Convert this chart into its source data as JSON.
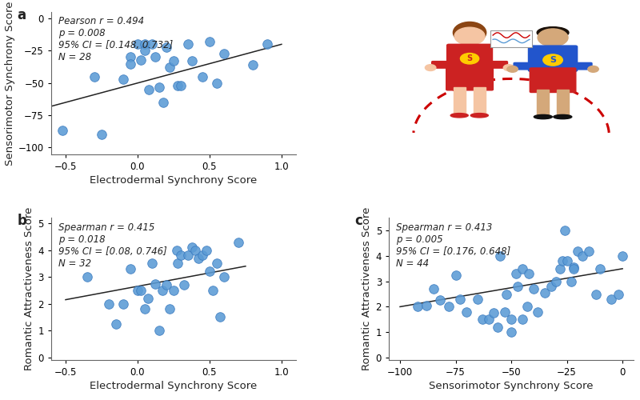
{
  "panel_a": {
    "label": "a",
    "stat_text": "Pearson r = 0.494\np = 0.008\n95% CI = [0.148, 0.732]\nN = 28",
    "xlabel": "Electrodermal Synchrony Score",
    "ylabel": "Sensorimotor Synchrony Score",
    "xlim": [
      -0.6,
      1.1
    ],
    "ylim": [
      -105,
      5
    ],
    "xticks": [
      -0.5,
      0.0,
      0.5,
      1.0
    ],
    "yticks": [
      0,
      -25,
      -50,
      -75,
      -100
    ],
    "x": [
      -0.52,
      -0.3,
      -0.25,
      -0.1,
      -0.05,
      -0.05,
      0.0,
      0.02,
      0.05,
      0.05,
      0.08,
      0.1,
      0.12,
      0.15,
      0.18,
      0.2,
      0.22,
      0.25,
      0.28,
      0.3,
      0.35,
      0.38,
      0.45,
      0.5,
      0.55,
      0.6,
      0.8,
      0.9
    ],
    "y": [
      -87,
      -45,
      -90,
      -47,
      -30,
      -35,
      -20,
      -32,
      -20,
      -25,
      -55,
      -20,
      -30,
      -53,
      -65,
      -22,
      -38,
      -33,
      -52,
      -52,
      -20,
      -33,
      -45,
      -18,
      -50,
      -27,
      -36,
      -20
    ],
    "line_x": [
      -0.6,
      1.0
    ],
    "line_y": [
      -68,
      -20
    ],
    "dot_color": "#5b9bd5",
    "dot_size": 70,
    "dot_edgecolor": "#3a7abf",
    "line_color": "#222222"
  },
  "panel_b": {
    "label": "b",
    "stat_text": "Spearman r = 0.415\np = 0.018\n95% CI = [0.08, 0.746]\nN = 32",
    "xlabel": "Electrodermal Synchrony Score",
    "ylabel": "Romantic Attractiveness Score",
    "xlim": [
      -0.6,
      1.1
    ],
    "ylim": [
      -0.1,
      5.2
    ],
    "xticks": [
      -0.5,
      0.0,
      0.5,
      1.0
    ],
    "yticks": [
      0,
      1,
      2,
      3,
      4,
      5
    ],
    "x": [
      -0.35,
      -0.2,
      -0.15,
      -0.1,
      -0.05,
      0.0,
      0.02,
      0.05,
      0.07,
      0.1,
      0.12,
      0.15,
      0.17,
      0.2,
      0.22,
      0.25,
      0.27,
      0.28,
      0.3,
      0.32,
      0.35,
      0.38,
      0.4,
      0.42,
      0.45,
      0.48,
      0.5,
      0.52,
      0.55,
      0.57,
      0.6,
      0.7
    ],
    "y": [
      3.0,
      2.0,
      1.25,
      2.0,
      3.3,
      2.5,
      2.5,
      1.8,
      2.2,
      3.5,
      2.75,
      1.0,
      2.5,
      2.7,
      1.8,
      2.5,
      4.0,
      3.5,
      3.8,
      2.7,
      3.8,
      4.1,
      4.0,
      3.7,
      3.8,
      4.0,
      3.2,
      2.5,
      3.5,
      1.5,
      3.0,
      4.3
    ],
    "line_x": [
      -0.5,
      0.75
    ],
    "line_y": [
      2.15,
      3.4
    ],
    "dot_color": "#5b9bd5",
    "dot_size": 70,
    "dot_edgecolor": "#3a7abf",
    "line_color": "#222222"
  },
  "panel_c": {
    "label": "c",
    "stat_text": "Spearman r = 0.413\np = 0.005\n95% CI = [0.176, 0.648]\nN = 44",
    "xlabel": "Sensorimotor Synchrony Score",
    "ylabel": "Romantic Attractiveness Score",
    "xlim": [
      -105,
      5
    ],
    "ylim": [
      -0.1,
      5.5
    ],
    "xticks": [
      -100,
      -75,
      -50,
      -25,
      0
    ],
    "yticks": [
      0,
      1,
      2,
      3,
      4,
      5
    ],
    "x": [
      -92,
      -88,
      -85,
      -82,
      -78,
      -75,
      -73,
      -70,
      -65,
      -63,
      -60,
      -58,
      -56,
      -55,
      -53,
      -52,
      -50,
      -50,
      -48,
      -47,
      -45,
      -45,
      -43,
      -42,
      -40,
      -38,
      -35,
      -32,
      -30,
      -28,
      -27,
      -26,
      -25,
      -23,
      -22,
      -22,
      -20,
      -18,
      -15,
      -12,
      -10,
      -5,
      -2,
      0
    ],
    "y": [
      2.0,
      2.05,
      2.7,
      2.25,
      2.0,
      3.25,
      2.3,
      1.8,
      2.3,
      1.5,
      1.5,
      1.75,
      1.2,
      4.0,
      1.8,
      2.5,
      1.0,
      1.5,
      3.3,
      2.8,
      1.5,
      3.5,
      2.0,
      3.3,
      2.7,
      1.8,
      2.55,
      2.8,
      3.0,
      3.5,
      3.8,
      5.0,
      3.8,
      3.0,
      3.55,
      3.5,
      4.2,
      4.0,
      4.2,
      2.5,
      3.5,
      2.3,
      2.5,
      4.0
    ],
    "line_x": [
      -100,
      0
    ],
    "line_y": [
      2.0,
      3.5
    ],
    "dot_color": "#5b9bd5",
    "dot_size": 70,
    "dot_edgecolor": "#3a7abf",
    "line_color": "#222222"
  },
  "bg_color": "#ffffff",
  "text_color": "#222222",
  "font_size_label": 9.5,
  "font_size_stat": 8.5,
  "font_size_tick": 8.5
}
